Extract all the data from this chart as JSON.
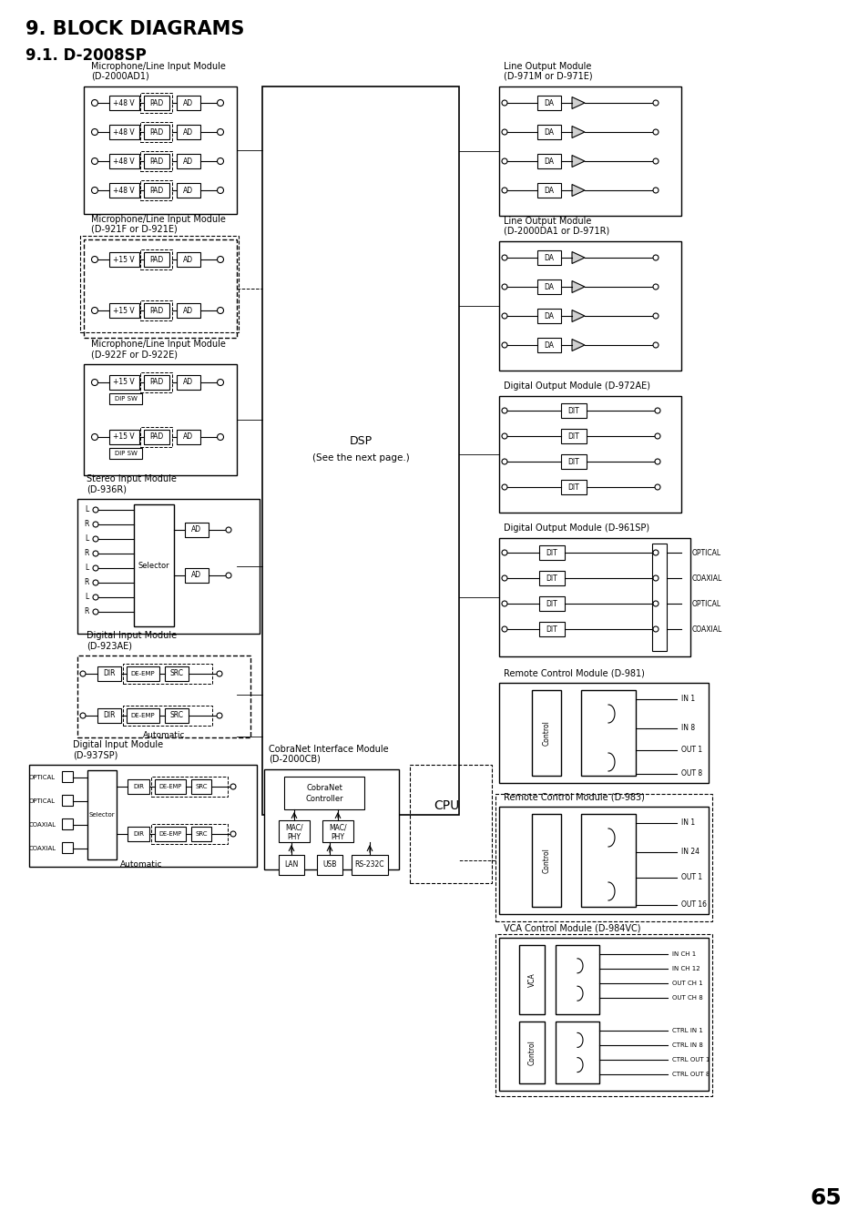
{
  "title": "9. BLOCK DIAGRAMS",
  "subtitle": "9.1. D-2008SP",
  "page_number": "65",
  "bg_color": "#ffffff"
}
